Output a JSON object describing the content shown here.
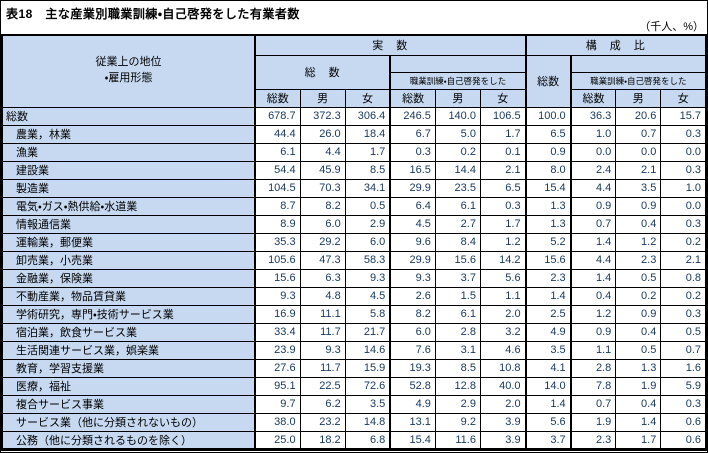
{
  "title": "表18　主な産業別職業訓練・自己啓発をした有業者数",
  "unit_label": "（千人、%）",
  "colors": {
    "header_bg": "#C6D9F1",
    "number_text": "#17375E",
    "border": "#000000"
  },
  "table": {
    "corner_header": "従業上の地位\n・雇用形態",
    "headers": {
      "actual": "実　数",
      "composition": "構　成　比",
      "total_wide": "総　数",
      "trained": "職業訓練・自己啓発をした",
      "comp_total": "総数",
      "total": "総数",
      "male": "男",
      "female": "女"
    },
    "rows": [
      {
        "label": "総数",
        "indent": false,
        "values": [
          "678.7",
          "372.3",
          "306.4",
          "246.5",
          "140.0",
          "106.5",
          "100.0",
          "36.3",
          "20.6",
          "15.7"
        ]
      },
      {
        "label": "農業，林業",
        "indent": true,
        "values": [
          "44.4",
          "26.0",
          "18.4",
          "6.7",
          "5.0",
          "1.7",
          "6.5",
          "1.0",
          "0.7",
          "0.3"
        ]
      },
      {
        "label": "漁業",
        "indent": true,
        "values": [
          "6.1",
          "4.4",
          "1.7",
          "0.3",
          "0.2",
          "0.1",
          "0.9",
          "0.0",
          "0.0",
          "0.0"
        ]
      },
      {
        "label": "建設業",
        "indent": true,
        "values": [
          "54.4",
          "45.9",
          "8.5",
          "16.5",
          "14.4",
          "2.1",
          "8.0",
          "2.4",
          "2.1",
          "0.3"
        ]
      },
      {
        "label": "製造業",
        "indent": true,
        "values": [
          "104.5",
          "70.3",
          "34.1",
          "29.9",
          "23.5",
          "6.5",
          "15.4",
          "4.4",
          "3.5",
          "1.0"
        ]
      },
      {
        "label": "電気・ガス・熱供給・水道業",
        "indent": true,
        "values": [
          "8.7",
          "8.2",
          "0.5",
          "6.4",
          "6.1",
          "0.3",
          "1.3",
          "0.9",
          "0.9",
          "0.0"
        ]
      },
      {
        "label": "情報通信業",
        "indent": true,
        "values": [
          "8.9",
          "6.0",
          "2.9",
          "4.5",
          "2.7",
          "1.7",
          "1.3",
          "0.7",
          "0.4",
          "0.3"
        ]
      },
      {
        "label": "運輸業，郵便業",
        "indent": true,
        "values": [
          "35.3",
          "29.2",
          "6.0",
          "9.6",
          "8.4",
          "1.2",
          "5.2",
          "1.4",
          "1.2",
          "0.2"
        ]
      },
      {
        "label": "卸売業，小売業",
        "indent": true,
        "values": [
          "105.6",
          "47.3",
          "58.3",
          "29.9",
          "15.6",
          "14.2",
          "15.6",
          "4.4",
          "2.3",
          "2.1"
        ]
      },
      {
        "label": "金融業，保険業",
        "indent": true,
        "values": [
          "15.6",
          "6.3",
          "9.3",
          "9.3",
          "3.7",
          "5.6",
          "2.3",
          "1.4",
          "0.5",
          "0.8"
        ]
      },
      {
        "label": "不動産業，物品賃貸業",
        "indent": true,
        "values": [
          "9.3",
          "4.8",
          "4.5",
          "2.6",
          "1.5",
          "1.1",
          "1.4",
          "0.4",
          "0.2",
          "0.2"
        ]
      },
      {
        "label": "学術研究，専門・技術サービス業",
        "indent": true,
        "values": [
          "16.9",
          "11.1",
          "5.8",
          "8.2",
          "6.1",
          "2.0",
          "2.5",
          "1.2",
          "0.9",
          "0.3"
        ]
      },
      {
        "label": "宿泊業，飲食サービス業",
        "indent": true,
        "values": [
          "33.4",
          "11.7",
          "21.7",
          "6.0",
          "2.8",
          "3.2",
          "4.9",
          "0.9",
          "0.4",
          "0.5"
        ]
      },
      {
        "label": "生活関連サービス業，娯楽業",
        "indent": true,
        "values": [
          "23.9",
          "9.3",
          "14.6",
          "7.6",
          "3.1",
          "4.6",
          "3.5",
          "1.1",
          "0.5",
          "0.7"
        ]
      },
      {
        "label": "教育，学習支援業",
        "indent": true,
        "values": [
          "27.6",
          "11.7",
          "15.9",
          "19.3",
          "8.5",
          "10.8",
          "4.1",
          "2.8",
          "1.3",
          "1.6"
        ]
      },
      {
        "label": "医療，福祉",
        "indent": true,
        "values": [
          "95.1",
          "22.5",
          "72.6",
          "52.8",
          "12.8",
          "40.0",
          "14.0",
          "7.8",
          "1.9",
          "5.9"
        ]
      },
      {
        "label": "複合サービス事業",
        "indent": true,
        "values": [
          "9.7",
          "6.2",
          "3.5",
          "4.9",
          "2.9",
          "2.0",
          "1.4",
          "0.7",
          "0.4",
          "0.3"
        ]
      },
      {
        "label": "サービス業（他に分類されないもの）",
        "indent": true,
        "values": [
          "38.0",
          "23.2",
          "14.8",
          "13.1",
          "9.2",
          "3.9",
          "5.6",
          "1.9",
          "1.4",
          "0.6"
        ]
      },
      {
        "label": "公務（他に分類されるものを除く）",
        "indent": true,
        "values": [
          "25.0",
          "18.2",
          "6.8",
          "15.4",
          "11.6",
          "3.9",
          "3.7",
          "2.3",
          "1.7",
          "0.6"
        ]
      }
    ]
  }
}
